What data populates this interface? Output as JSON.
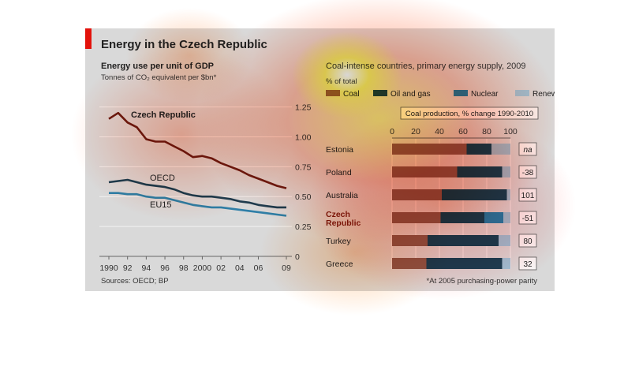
{
  "header": {
    "title": "Energy in the Czech Republic"
  },
  "footer": {
    "source": "Sources: OECD; BP",
    "footnote": "*At 2005 purchasing-power parity"
  },
  "colors": {
    "panel": "#d9d9d9",
    "accent": "#e3120b",
    "czech": "#6b1a0e",
    "oecd": "#1f3c4f",
    "eu15": "#2f7fa8",
    "coal": "#8c5a4a",
    "oil_gas": "#1f3f55",
    "nuclear": "#2e7fb0",
    "renewable": "#9fc4da"
  },
  "chart_data": [
    {
      "type": "line",
      "title": "Energy use per unit of GDP",
      "subtitle": "Tonnes of CO₂ equivalent per $bn*",
      "x": [
        1990,
        1991,
        1992,
        1993,
        1994,
        1995,
        1996,
        1997,
        1998,
        1999,
        2000,
        2001,
        2002,
        2003,
        2004,
        2005,
        2006,
        2007,
        2008,
        2009
      ],
      "xtick_labels": [
        "1990",
        "92",
        "94",
        "96",
        "98",
        "2000",
        "02",
        "04",
        "06",
        "09"
      ],
      "xticks": [
        1990,
        1992,
        1994,
        1996,
        1998,
        2000,
        2002,
        2004,
        2006,
        2009
      ],
      "yticks": [
        0,
        0.25,
        0.5,
        0.75,
        1.0,
        1.25
      ],
      "ytick_labels": [
        "0",
        "0.25",
        "0.50",
        "0.75",
        "1.00",
        "1.25"
      ],
      "ylim": [
        0,
        1.3
      ],
      "grid": true,
      "series": [
        {
          "name": "Czech Republic",
          "values": [
            1.15,
            1.2,
            1.12,
            1.08,
            0.98,
            0.96,
            0.96,
            0.92,
            0.88,
            0.83,
            0.84,
            0.82,
            0.78,
            0.75,
            0.72,
            0.68,
            0.65,
            0.62,
            0.59,
            0.57
          ]
        },
        {
          "name": "OECD",
          "values": [
            0.62,
            0.63,
            0.64,
            0.62,
            0.6,
            0.59,
            0.58,
            0.56,
            0.53,
            0.51,
            0.5,
            0.5,
            0.49,
            0.48,
            0.46,
            0.45,
            0.43,
            0.42,
            0.41,
            0.41
          ]
        },
        {
          "name": "EU15",
          "values": [
            0.53,
            0.53,
            0.52,
            0.52,
            0.5,
            0.49,
            0.49,
            0.47,
            0.45,
            0.43,
            0.42,
            0.41,
            0.41,
            0.4,
            0.39,
            0.38,
            0.37,
            0.36,
            0.35,
            0.34
          ]
        }
      ]
    },
    {
      "type": "bar",
      "title": "Coal-intense countries, primary energy supply, 2009",
      "unit": "% of total",
      "stacked": true,
      "orientation": "horizontal",
      "xlim": [
        0,
        100
      ],
      "xticks": [
        0,
        20,
        40,
        60,
        80,
        100
      ],
      "categories": [
        "Estonia",
        "Poland",
        "Australia",
        "Czech Republic",
        "Turkey",
        "Greece"
      ],
      "highlight": "Czech Republic",
      "series": [
        {
          "name": "Coal",
          "values": [
            63,
            55,
            42,
            41,
            30,
            29
          ]
        },
        {
          "name": "Oil and gas",
          "values": [
            21,
            38,
            55,
            37,
            60,
            64
          ]
        },
        {
          "name": "Nuclear",
          "values": [
            0,
            0,
            0,
            16,
            0,
            0
          ]
        },
        {
          "name": "Renewable",
          "values": [
            16,
            7,
            3,
            6,
            10,
            7
          ]
        }
      ],
      "annotation": {
        "label": "Coal production, % change 1990-2010",
        "values": [
          "na",
          "-38",
          "101",
          "-51",
          "80",
          "32"
        ]
      }
    }
  ]
}
